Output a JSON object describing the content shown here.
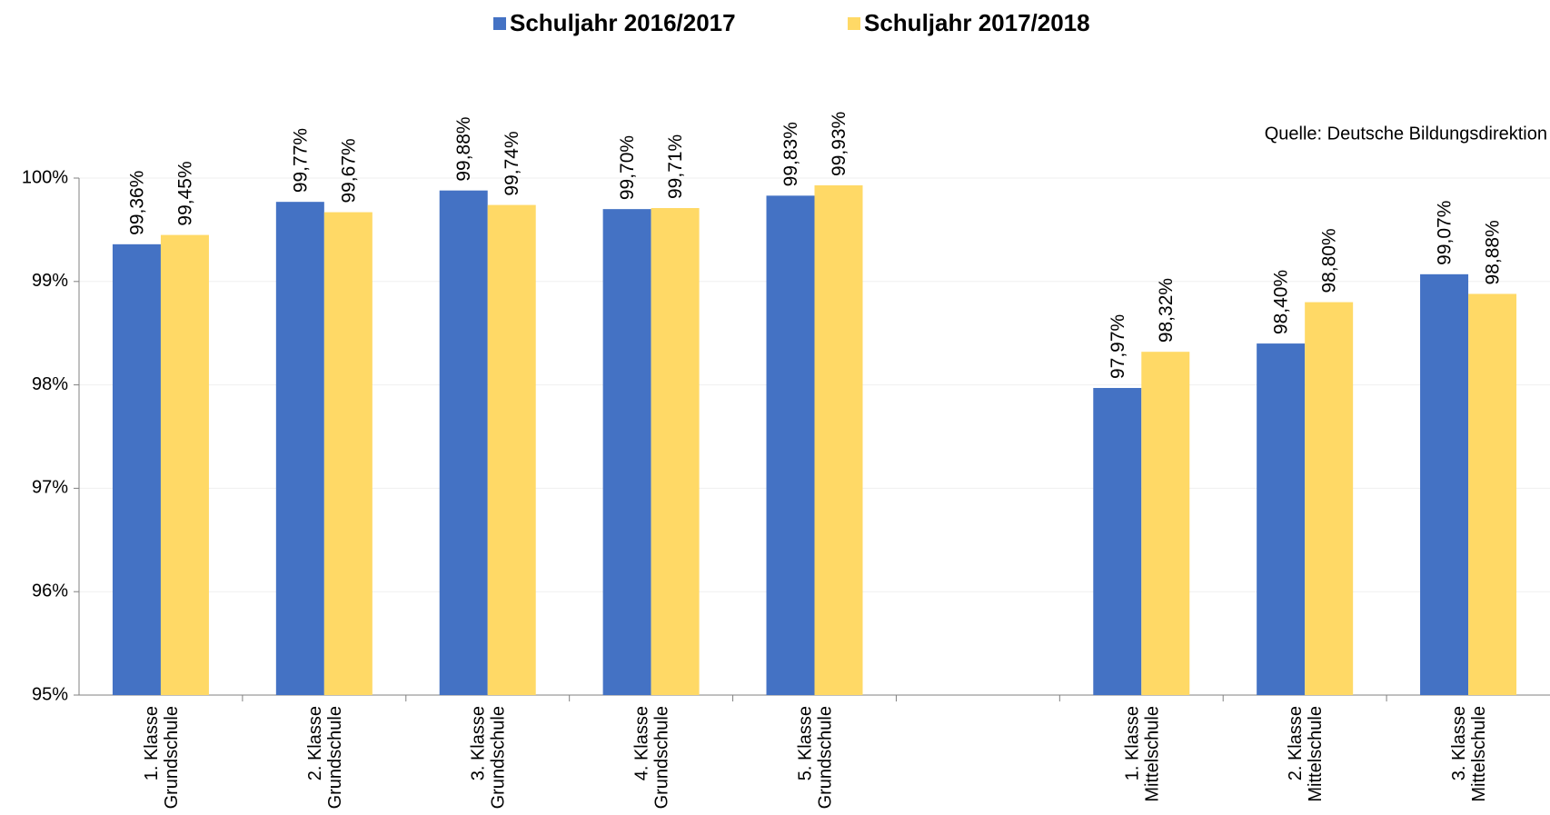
{
  "chart_data": {
    "type": "bar",
    "source": "Quelle: Deutsche Bildungsdirektion",
    "categories": [
      "1. Klasse\nGrundschule",
      "2. Klasse\nGrundschule",
      "3. Klasse\nGrundschule",
      "4. Klasse\nGrundschule",
      "5. Klasse\nGrundschule",
      null,
      "1. Klasse\nMittelschule",
      "2. Klasse\nMittelschule",
      "3. Klasse\nMittelschule"
    ],
    "series": [
      {
        "name": "Schuljahr 2016/2017",
        "color": "#4472c4",
        "values": [
          99.36,
          99.77,
          99.88,
          99.7,
          99.83,
          null,
          97.97,
          98.4,
          99.07
        ],
        "value_labels": [
          "99,36%",
          "99,77%",
          "99,88%",
          "99,70%",
          "99,83%",
          null,
          "97,97%",
          "98,40%",
          "99,07%"
        ]
      },
      {
        "name": "Schuljahr 2017/2018",
        "color": "#ffd966",
        "values": [
          99.45,
          99.67,
          99.74,
          99.71,
          99.93,
          null,
          98.32,
          98.8,
          98.88
        ],
        "value_labels": [
          "99,45%",
          "99,67%",
          "99,74%",
          "99,71%",
          "99,93%",
          null,
          "98,32%",
          "98,80%",
          "98,88%"
        ]
      }
    ],
    "ylim": [
      95,
      100
    ],
    "yticks": [
      {
        "value": 95,
        "label": "95%"
      },
      {
        "value": 96,
        "label": "96%"
      },
      {
        "value": 97,
        "label": "97%"
      },
      {
        "value": 98,
        "label": "98%"
      },
      {
        "value": 99,
        "label": "99%"
      },
      {
        "value": 100,
        "label": "100%"
      }
    ],
    "grid": true,
    "legend": "top"
  }
}
